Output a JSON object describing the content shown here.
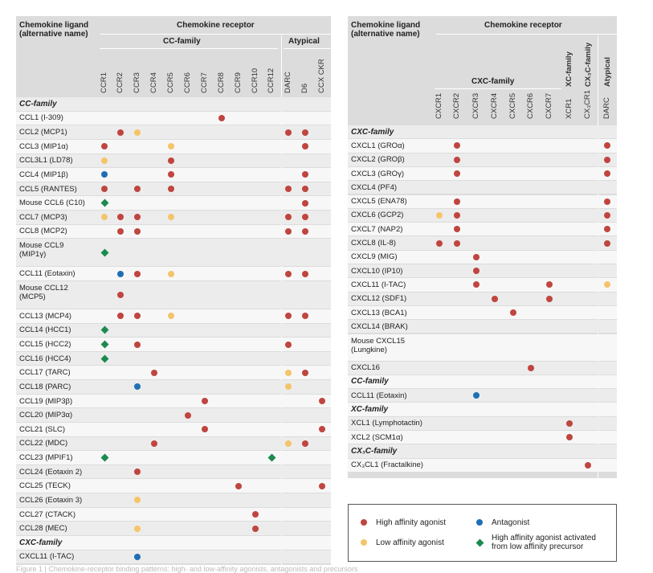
{
  "colors": {
    "high": "#c0453f",
    "low": "#f5c46a",
    "antagonist": "#1f6fb4",
    "precursor": "#1b8a4e"
  },
  "left": {
    "header": {
      "ligand_title": "Chemokine ligand",
      "ligand_subtitle": "(alternative name)",
      "receptor_title": "Chemokine receptor",
      "cc_family": "CC-family",
      "atypical": "Atypical"
    },
    "columns": [
      "CCR1",
      "CCR2",
      "CCR3",
      "CCR4",
      "CCR5",
      "CCR6",
      "CCR7",
      "CCR8",
      "CCR9",
      "CCR10",
      "CCR12",
      "DARC",
      "D6",
      "CCX CKR"
    ],
    "rows": [
      {
        "section": "CC-family"
      },
      {
        "label": "CCL1 (I-309)",
        "marks": {
          "7": "high"
        }
      },
      {
        "label": "CCL2 (MCP1)",
        "marks": {
          "1": "high",
          "2": "low",
          "11": "high",
          "12": "high"
        }
      },
      {
        "label": "CCL3 (MIP1α)",
        "marks": {
          "0": "high",
          "4": "low",
          "12": "high"
        }
      },
      {
        "label": "CCL3L1 (LD78)",
        "marks": {
          "0": "low",
          "4": "high"
        }
      },
      {
        "label": "CCL4 (MIP1β)",
        "marks": {
          "0": "antagonist",
          "4": "high",
          "12": "high"
        }
      },
      {
        "label": "CCL5 (RANTES)",
        "marks": {
          "0": "high",
          "2": "high",
          "4": "high",
          "11": "high",
          "12": "high"
        }
      },
      {
        "label": "Mouse CCL6 (C10)",
        "marks": {
          "0": "precursor",
          "12": "high"
        }
      },
      {
        "label": "CCL7 (MCP3)",
        "marks": {
          "0": "low",
          "1": "high",
          "2": "high",
          "4": "low",
          "11": "high",
          "12": "high"
        }
      },
      {
        "label": "CCL8 (MCP2)",
        "marks": {
          "1": "high",
          "2": "high",
          "11": "high",
          "12": "high"
        }
      },
      {
        "label": "Mouse CCL9",
        "label2": "(MIP1γ)",
        "tall": true,
        "marks": {
          "0": "precursor"
        }
      },
      {
        "label": "CCL11 (Eotaxin)",
        "marks": {
          "1": "antagonist",
          "2": "high",
          "4": "low",
          "11": "high",
          "12": "high"
        }
      },
      {
        "label": "Mouse CCL12",
        "label2": "(MCP5)",
        "tall": true,
        "marks": {
          "1": "high"
        }
      },
      {
        "label": "CCL13 (MCP4)",
        "marks": {
          "1": "high",
          "2": "high",
          "4": "low",
          "11": "high",
          "12": "high"
        }
      },
      {
        "label": "CCL14 (HCC1)",
        "marks": {
          "0": "precursor"
        }
      },
      {
        "label": "CCL15 (HCC2)",
        "marks": {
          "0": "precursor",
          "2": "high",
          "11": "high"
        }
      },
      {
        "label": "CCL16 (HCC4)",
        "marks": {
          "0": "precursor"
        }
      },
      {
        "label": "CCL17 (TARC)",
        "marks": {
          "3": "high",
          "11": "low",
          "12": "high"
        }
      },
      {
        "label": "CCL18 (PARC)",
        "marks": {
          "2": "antagonist",
          "11": "low"
        }
      },
      {
        "label": "CCL19 (MIP3β)",
        "marks": {
          "6": "high",
          "13": "high"
        }
      },
      {
        "label": "CCL20 (MIP3α)",
        "marks": {
          "5": "high"
        }
      },
      {
        "label": "CCL21 (SLC)",
        "marks": {
          "6": "high",
          "13": "high"
        }
      },
      {
        "label": "CCL22 (MDC)",
        "marks": {
          "3": "high",
          "11": "low",
          "12": "high"
        }
      },
      {
        "label": "CCL23 (MPIF1)",
        "marks": {
          "0": "precursor",
          "10": "precursor"
        }
      },
      {
        "label": "CCL24 (Eotaxin 2)",
        "marks": {
          "2": "high"
        }
      },
      {
        "label": "CCL25 (TECK)",
        "marks": {
          "8": "high",
          "13": "high"
        }
      },
      {
        "label": "CCL26 (Eotaxin 3)",
        "marks": {
          "2": "low"
        }
      },
      {
        "label": "CCL27 (CTACK)",
        "marks": {
          "9": "high"
        }
      },
      {
        "label": "CCL28 (MEC)",
        "marks": {
          "2": "low",
          "9": "high"
        }
      },
      {
        "section": "CXC-family"
      },
      {
        "label": "CXCL11 (I-TAC)",
        "marks": {
          "2": "antagonist"
        }
      }
    ]
  },
  "right": {
    "header": {
      "ligand_title": "Chemokine ligand",
      "ligand_subtitle": "(alternative name)",
      "receptor_title": "Chemokine receptor",
      "cxc_family": "CXC-family",
      "xc_family": "XC-family",
      "cx3c_family": "CX₃C-family",
      "atypical": "Atypical"
    },
    "columns": [
      "CXCR1",
      "CXCR2",
      "CXCR3",
      "CXCR4",
      "CXCR5",
      "CXCR6",
      "CXCR7",
      "XCR1",
      "CX₃CR1",
      "DARC"
    ],
    "rows": [
      {
        "section": "CXC-family"
      },
      {
        "label": "CXCL1 (GROα)",
        "marks": {
          "1": "high",
          "9": "high"
        }
      },
      {
        "label": "CXCL2 (GROβ)",
        "marks": {
          "1": "high",
          "9": "high"
        }
      },
      {
        "label": "CXCL3 (GROγ)",
        "marks": {
          "1": "high",
          "9": "high"
        }
      },
      {
        "label": "CXCL4 (PF4)",
        "marks": {}
      },
      {
        "label": "CXCL5 (ENA78)",
        "marks": {
          "1": "high",
          "9": "high"
        }
      },
      {
        "label": "CXCL6 (GCP2)",
        "marks": {
          "0": "low",
          "1": "high",
          "9": "high"
        }
      },
      {
        "label": "CXCL7 (NAP2)",
        "marks": {
          "1": "high",
          "9": "high"
        }
      },
      {
        "label": "CXCL8 (IL-8)",
        "marks": {
          "0": "high",
          "1": "high",
          "9": "high"
        }
      },
      {
        "label": "CXCL9 (MIG)",
        "marks": {
          "2": "high"
        }
      },
      {
        "label": "CXCL10 (IP10)",
        "marks": {
          "2": "high"
        }
      },
      {
        "label": "CXCL11 (I-TAC)",
        "marks": {
          "2": "high",
          "6": "high",
          "9": "low"
        }
      },
      {
        "label": "CXCL12 (SDF1)",
        "marks": {
          "3": "high",
          "6": "high"
        }
      },
      {
        "label": "CXCL13 (BCA1)",
        "marks": {
          "4": "high"
        }
      },
      {
        "label": "CXCL14 (BRAK)",
        "marks": {}
      },
      {
        "label": "Mouse CXCL15",
        "label2": "(Lungkine)",
        "tall": true,
        "marks": {}
      },
      {
        "label": "CXCL16",
        "marks": {
          "5": "high"
        }
      },
      {
        "section": "CC-family"
      },
      {
        "label": "CCL11 (Eotaxin)",
        "marks": {
          "2": "antagonist"
        }
      },
      {
        "section": "XC-family"
      },
      {
        "label": "XCL1 (Lymphotactin)",
        "marks": {
          "7": "high"
        }
      },
      {
        "label": "XCL2 (SCM1α)",
        "marks": {
          "7": "high"
        }
      },
      {
        "section": "CX₃C-family"
      },
      {
        "label": "CX₃CL1 (Fractalkine)",
        "marks": {
          "8": "high"
        }
      }
    ]
  },
  "legend": {
    "high": "High affinity agonist",
    "low": "Low affinity agonist",
    "antagonist": "Antagonist",
    "precursor_line1": "High affinity agonist activated",
    "precursor_line2": "from low affinity precursor"
  },
  "caption": "Figure 1 | Chemokine-receptor binding patterns: high- and low-affinity agonists, antagonists and precursors"
}
